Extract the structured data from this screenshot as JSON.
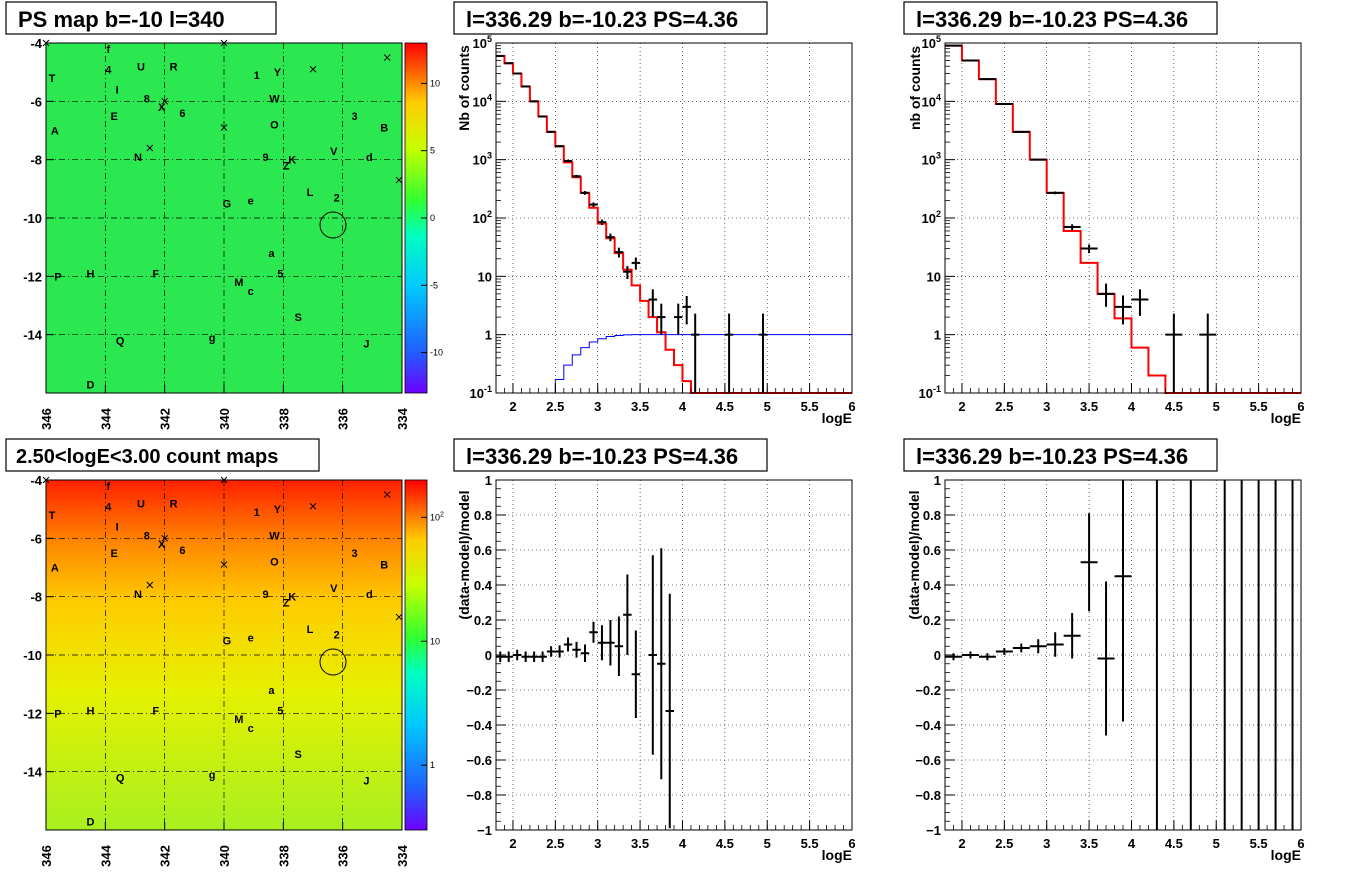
{
  "chart_data": [
    {
      "type": "heatmap",
      "title": "PS map b=-10 l=340",
      "x_ticks": [
        "346",
        "344",
        "342",
        "340",
        "338",
        "336",
        "334"
      ],
      "y_ticks": [
        "-4",
        "-6",
        "-8",
        "-10",
        "-12",
        "-14"
      ],
      "xlim": [
        346,
        334
      ],
      "ylim": [
        -16,
        -4
      ],
      "colorbar": {
        "scale": "linear",
        "min": -13,
        "max": 13,
        "ticks": [
          "10",
          "5",
          "0",
          "-5",
          "-10"
        ]
      },
      "grid": true,
      "background_value": 0,
      "source_labels": [
        {
          "label": "f",
          "l": 343.9,
          "b": -4.2
        },
        {
          "label": "4",
          "l": 343.9,
          "b": -4.9
        },
        {
          "label": "U",
          "l": 342.8,
          "b": -4.8
        },
        {
          "label": "R",
          "l": 341.7,
          "b": -4.8
        },
        {
          "label": "1",
          "l": 338.9,
          "b": -5.1
        },
        {
          "label": "Y",
          "l": 338.2,
          "b": -5.0
        },
        {
          "label": "T",
          "l": 345.8,
          "b": -5.2
        },
        {
          "label": "I",
          "l": 343.6,
          "b": -5.6
        },
        {
          "label": "8",
          "l": 342.6,
          "b": -5.9
        },
        {
          "label": "W",
          "l": 338.3,
          "b": -5.9
        },
        {
          "label": "X",
          "l": 342.1,
          "b": -6.2
        },
        {
          "label": "6",
          "l": 341.4,
          "b": -6.4
        },
        {
          "label": "E",
          "l": 343.7,
          "b": -6.5
        },
        {
          "label": "3",
          "l": 335.6,
          "b": -6.5
        },
        {
          "label": "O",
          "l": 338.3,
          "b": -6.8
        },
        {
          "label": "A",
          "l": 345.7,
          "b": -7.0
        },
        {
          "label": "B",
          "l": 334.6,
          "b": -6.9
        },
        {
          "label": "N",
          "l": 342.9,
          "b": -7.9
        },
        {
          "label": "9",
          "l": 338.6,
          "b": -7.9
        },
        {
          "label": "K",
          "l": 337.7,
          "b": -8.0
        },
        {
          "label": "Z",
          "l": 337.9,
          "b": -8.2
        },
        {
          "label": "V",
          "l": 336.3,
          "b": -7.7
        },
        {
          "label": "d",
          "l": 335.1,
          "b": -7.9
        },
        {
          "label": "L",
          "l": 337.1,
          "b": -9.1
        },
        {
          "label": "2",
          "l": 336.2,
          "b": -9.3
        },
        {
          "label": "G",
          "l": 339.9,
          "b": -9.5
        },
        {
          "label": "e",
          "l": 339.1,
          "b": -9.4
        },
        {
          "label": "a",
          "l": 338.4,
          "b": -11.2
        },
        {
          "label": "P",
          "l": 345.6,
          "b": -12.0
        },
        {
          "label": "H",
          "l": 344.5,
          "b": -11.9
        },
        {
          "label": "F",
          "l": 342.3,
          "b": -11.9
        },
        {
          "label": "5",
          "l": 338.1,
          "b": -11.9
        },
        {
          "label": "M",
          "l": 339.5,
          "b": -12.2
        },
        {
          "label": "c",
          "l": 339.1,
          "b": -12.5
        },
        {
          "label": "S",
          "l": 337.5,
          "b": -13.4
        },
        {
          "label": "Q",
          "l": 343.5,
          "b": -14.2
        },
        {
          "label": "g",
          "l": 340.4,
          "b": -14.1
        },
        {
          "label": "J",
          "l": 335.2,
          "b": -14.3
        },
        {
          "label": "D",
          "l": 344.5,
          "b": -15.7
        }
      ],
      "crosses": [
        {
          "l": 346.0,
          "b": -4.0
        },
        {
          "l": 340.0,
          "b": -4.0
        },
        {
          "l": 337.0,
          "b": -4.9
        },
        {
          "l": 334.5,
          "b": -4.5
        },
        {
          "l": 342.0,
          "b": -6.0
        },
        {
          "l": 340.0,
          "b": -6.9
        },
        {
          "l": 342.5,
          "b": -7.6
        },
        {
          "l": 334.1,
          "b": -8.7
        }
      ],
      "circle": {
        "l": 336.29,
        "b": -10.23
      }
    },
    {
      "type": "line",
      "title": "l=336.29 b=-10.23 PS=4.36",
      "xlabel": "logE",
      "ylabel": "Nb of counts",
      "xlim": [
        1.8,
        6
      ],
      "ylim": [
        0.1,
        100000
      ],
      "yscale": "log",
      "x_ticks": [
        "2",
        "2.5",
        "3",
        "3.5",
        "4",
        "4.5",
        "5",
        "5.5",
        "6"
      ],
      "y_ticks": [
        "10^-1",
        "1",
        "10",
        "10^2",
        "10^3",
        "10^4",
        "10^5"
      ],
      "grid": true,
      "series": [
        {
          "color": "#ff0000",
          "step_width": 0.1,
          "edges_start": 1.8,
          "values": [
            60000,
            45000,
            30000,
            18000,
            10000,
            5500,
            3000,
            1700,
            900,
            500,
            270,
            150,
            80,
            45,
            25,
            13,
            7,
            3.8,
            2.0,
            1.1,
            0.55,
            0.3,
            0.16,
            0.1,
            0.1,
            0.1,
            0.1,
            0.1,
            0.1,
            0.1,
            0.1,
            0.1,
            0.1,
            0.1,
            0.1,
            0.1,
            0.1,
            0.1,
            0.1,
            0.1,
            0.1,
            0.1
          ]
        },
        {
          "color": "#0000ff",
          "step_width": 0.1,
          "edges_start": 1.8,
          "values": [
            0.1,
            0.1,
            0.1,
            0.1,
            0.1,
            0.1,
            0.1,
            0.17,
            0.3,
            0.45,
            0.6,
            0.75,
            0.85,
            0.93,
            0.97,
            0.99,
            1,
            1,
            1,
            1,
            1,
            1,
            1,
            1,
            1,
            1,
            1,
            1,
            1,
            1,
            1,
            1,
            1,
            1,
            1,
            1,
            1,
            1,
            1,
            1,
            1,
            1
          ]
        }
      ],
      "points": [
        {
          "x": 1.85,
          "y": 60000,
          "ylo": 59000,
          "yhi": 61000,
          "hw": 0.05
        },
        {
          "x": 1.95,
          "y": 45000,
          "ylo": 44000,
          "yhi": 46000,
          "hw": 0.05
        },
        {
          "x": 2.05,
          "y": 30000,
          "ylo": 29000,
          "yhi": 31000,
          "hw": 0.05
        },
        {
          "x": 2.15,
          "y": 18000,
          "ylo": 17500,
          "yhi": 18500,
          "hw": 0.05
        },
        {
          "x": 2.25,
          "y": 10000,
          "ylo": 9700,
          "yhi": 10300,
          "hw": 0.05
        },
        {
          "x": 2.35,
          "y": 5500,
          "ylo": 5300,
          "yhi": 5700,
          "hw": 0.05
        },
        {
          "x": 2.45,
          "y": 3000,
          "ylo": 2900,
          "yhi": 3100,
          "hw": 0.05
        },
        {
          "x": 2.55,
          "y": 1700,
          "ylo": 1630,
          "yhi": 1770,
          "hw": 0.05
        },
        {
          "x": 2.65,
          "y": 950,
          "ylo": 900,
          "yhi": 1000,
          "hw": 0.05
        },
        {
          "x": 2.75,
          "y": 520,
          "ylo": 490,
          "yhi": 550,
          "hw": 0.05
        },
        {
          "x": 2.85,
          "y": 270,
          "ylo": 250,
          "yhi": 290,
          "hw": 0.05
        },
        {
          "x": 2.95,
          "y": 170,
          "ylo": 155,
          "yhi": 185,
          "hw": 0.05
        },
        {
          "x": 3.05,
          "y": 85,
          "ylo": 76,
          "yhi": 94,
          "hw": 0.05
        },
        {
          "x": 3.15,
          "y": 47,
          "ylo": 40,
          "yhi": 54,
          "hw": 0.05
        },
        {
          "x": 3.25,
          "y": 26,
          "ylo": 21,
          "yhi": 31,
          "hw": 0.05
        },
        {
          "x": 3.35,
          "y": 12,
          "ylo": 9,
          "yhi": 15,
          "hw": 0.05
        },
        {
          "x": 3.45,
          "y": 17,
          "ylo": 13,
          "yhi": 21,
          "hw": 0.05
        },
        {
          "x": 3.65,
          "y": 4,
          "ylo": 2,
          "yhi": 6,
          "hw": 0.05
        },
        {
          "x": 3.75,
          "y": 2,
          "ylo": 1,
          "yhi": 3.4,
          "hw": 0.05
        },
        {
          "x": 3.95,
          "y": 2,
          "ylo": 1,
          "yhi": 3.4,
          "hw": 0.05
        },
        {
          "x": 4.05,
          "y": 3,
          "ylo": 1.5,
          "yhi": 4.6,
          "hw": 0.05
        },
        {
          "x": 4.15,
          "y": 1,
          "ylo": 0.1,
          "yhi": 2.3,
          "hw": 0.05
        },
        {
          "x": 4.55,
          "y": 1,
          "ylo": 0.1,
          "yhi": 2.3,
          "hw": 0.05
        },
        {
          "x": 4.95,
          "y": 1,
          "ylo": 0.1,
          "yhi": 2.3,
          "hw": 0.05
        }
      ]
    },
    {
      "type": "line",
      "title": "l=336.29 b=-10.23 PS=4.36",
      "xlabel": "logE",
      "ylabel": "nb of counts",
      "xlim": [
        1.8,
        6
      ],
      "ylim": [
        0.1,
        100000
      ],
      "yscale": "log",
      "x_ticks": [
        "2",
        "2.5",
        "3",
        "3.5",
        "4",
        "4.5",
        "5",
        "5.5",
        "6"
      ],
      "y_ticks": [
        "10^-1",
        "1",
        "10",
        "10^2",
        "10^3",
        "10^4",
        "10^5"
      ],
      "grid": true,
      "series": [
        {
          "color": "#ff0000",
          "step_width": 0.2,
          "edges_start": 1.8,
          "values": [
            90000,
            50000,
            24000,
            9000,
            3000,
            1000,
            270,
            60,
            17,
            5,
            1.9,
            0.6,
            0.2,
            0.1,
            0.1,
            0.1,
            0.1,
            0.1,
            0.1,
            0.1,
            0.1
          ]
        }
      ],
      "points": [
        {
          "x": 1.9,
          "y": 90000,
          "ylo": 89000,
          "yhi": 91000,
          "hw": 0.1
        },
        {
          "x": 2.1,
          "y": 50000,
          "ylo": 49000,
          "yhi": 51000,
          "hw": 0.1
        },
        {
          "x": 2.3,
          "y": 24000,
          "ylo": 23500,
          "yhi": 24500,
          "hw": 0.1
        },
        {
          "x": 2.5,
          "y": 9000,
          "ylo": 8800,
          "yhi": 9200,
          "hw": 0.1
        },
        {
          "x": 2.7,
          "y": 3000,
          "ylo": 2900,
          "yhi": 3100,
          "hw": 0.1
        },
        {
          "x": 2.9,
          "y": 1000,
          "ylo": 970,
          "yhi": 1030,
          "hw": 0.1
        },
        {
          "x": 3.1,
          "y": 270,
          "ylo": 255,
          "yhi": 285,
          "hw": 0.1
        },
        {
          "x": 3.3,
          "y": 70,
          "ylo": 62,
          "yhi": 78,
          "hw": 0.1
        },
        {
          "x": 3.5,
          "y": 30,
          "ylo": 25,
          "yhi": 35,
          "hw": 0.1
        },
        {
          "x": 3.7,
          "y": 5,
          "ylo": 3,
          "yhi": 7.5,
          "hw": 0.1
        },
        {
          "x": 3.9,
          "y": 3,
          "ylo": 1.5,
          "yhi": 4.7,
          "hw": 0.1
        },
        {
          "x": 4.1,
          "y": 4,
          "ylo": 2.1,
          "yhi": 6,
          "hw": 0.1
        },
        {
          "x": 4.5,
          "y": 1,
          "ylo": 0.1,
          "yhi": 2.3,
          "hw": 0.1
        },
        {
          "x": 4.9,
          "y": 1,
          "ylo": 0.1,
          "yhi": 2.3,
          "hw": 0.1
        }
      ]
    },
    {
      "type": "heatmap",
      "title": "2.50<logE<3.00 count maps",
      "x_ticks": [
        "346",
        "344",
        "342",
        "340",
        "338",
        "336",
        "334"
      ],
      "y_ticks": [
        "-4",
        "-6",
        "-8",
        "-10",
        "-12",
        "-14"
      ],
      "xlim": [
        346,
        334
      ],
      "ylim": [
        -16,
        -4
      ],
      "colorbar": {
        "scale": "log",
        "min": 0.3,
        "max": 200,
        "ticks": [
          "10^2",
          "10",
          "1"
        ]
      },
      "grid": true,
      "gradient": {
        "top_value": 150,
        "bottom_value": 12
      }
    },
    {
      "type": "scatter",
      "title": "l=336.29 b=-10.23 PS=4.36",
      "xlabel": "logE",
      "ylabel": "(data-model)/model",
      "xlim": [
        1.8,
        6
      ],
      "ylim": [
        -1,
        1
      ],
      "x_ticks": [
        "2",
        "2.5",
        "3",
        "3.5",
        "4",
        "4.5",
        "5",
        "5.5",
        "6"
      ],
      "y_ticks": [
        "1",
        "0.8",
        "0.6",
        "0.4",
        "0.2",
        "0",
        "-0.2",
        "-0.4",
        "-0.6",
        "-0.8",
        "-1"
      ],
      "grid": true,
      "points": [
        {
          "x": 1.85,
          "y": -0.01,
          "err": 0.03,
          "hw": 0.05
        },
        {
          "x": 1.95,
          "y": -0.01,
          "err": 0.03,
          "hw": 0.05
        },
        {
          "x": 2.05,
          "y": 0.0,
          "err": 0.03,
          "hw": 0.05
        },
        {
          "x": 2.15,
          "y": -0.01,
          "err": 0.03,
          "hw": 0.05
        },
        {
          "x": 2.25,
          "y": -0.01,
          "err": 0.03,
          "hw": 0.05
        },
        {
          "x": 2.35,
          "y": -0.01,
          "err": 0.03,
          "hw": 0.05
        },
        {
          "x": 2.45,
          "y": 0.02,
          "err": 0.03,
          "hw": 0.05
        },
        {
          "x": 2.55,
          "y": 0.02,
          "err": 0.035,
          "hw": 0.05
        },
        {
          "x": 2.65,
          "y": 0.06,
          "err": 0.04,
          "hw": 0.05
        },
        {
          "x": 2.75,
          "y": 0.03,
          "err": 0.045,
          "hw": 0.05
        },
        {
          "x": 2.85,
          "y": 0.01,
          "err": 0.05,
          "hw": 0.05
        },
        {
          "x": 2.95,
          "y": 0.13,
          "err": 0.06,
          "hw": 0.05
        },
        {
          "x": 3.05,
          "y": 0.07,
          "err": 0.1,
          "hw": 0.05
        },
        {
          "x": 3.15,
          "y": 0.07,
          "err": 0.13,
          "hw": 0.05
        },
        {
          "x": 3.25,
          "y": 0.05,
          "err": 0.17,
          "hw": 0.05
        },
        {
          "x": 3.35,
          "y": 0.23,
          "err": 0.23,
          "hw": 0.05
        },
        {
          "x": 3.45,
          "y": -0.11,
          "err": 0.25,
          "hw": 0.05
        },
        {
          "x": 3.65,
          "y": 0.0,
          "err": 0.57,
          "hw": 0.05
        },
        {
          "x": 3.75,
          "y": -0.05,
          "err": 0.66,
          "hw": 0.05
        },
        {
          "x": 3.85,
          "y": -0.32,
          "err": 0.67,
          "hw": 0.05
        }
      ]
    },
    {
      "type": "scatter",
      "title": "l=336.29 b=-10.23 PS=4.36",
      "xlabel": "logE",
      "ylabel": "(data-model)/model",
      "xlim": [
        1.8,
        6
      ],
      "ylim": [
        -1,
        1
      ],
      "x_ticks": [
        "2",
        "2.5",
        "3",
        "3.5",
        "4",
        "4.5",
        "5",
        "5.5",
        "6"
      ],
      "y_ticks": [
        "1",
        "0.8",
        "0.6",
        "0.4",
        "0.2",
        "0",
        "-0.2",
        "-0.4",
        "-0.6",
        "-0.8",
        "-1"
      ],
      "grid": true,
      "points": [
        {
          "x": 1.9,
          "y": -0.01,
          "err": 0.02,
          "hw": 0.1
        },
        {
          "x": 2.1,
          "y": 0.0,
          "err": 0.02,
          "hw": 0.1
        },
        {
          "x": 2.3,
          "y": -0.01,
          "err": 0.02,
          "hw": 0.1
        },
        {
          "x": 2.5,
          "y": 0.02,
          "err": 0.02,
          "hw": 0.1
        },
        {
          "x": 2.7,
          "y": 0.04,
          "err": 0.025,
          "hw": 0.1
        },
        {
          "x": 2.9,
          "y": 0.05,
          "err": 0.04,
          "hw": 0.1
        },
        {
          "x": 3.1,
          "y": 0.06,
          "err": 0.07,
          "hw": 0.1
        },
        {
          "x": 3.3,
          "y": 0.11,
          "err": 0.13,
          "hw": 0.1
        },
        {
          "x": 3.5,
          "y": 0.53,
          "err": 0.28,
          "hw": 0.1
        },
        {
          "x": 3.7,
          "y": -0.02,
          "err": 0.44,
          "hw": 0.1
        },
        {
          "x": 3.9,
          "y": 0.45,
          "err": 0.83,
          "hw": 0.1
        },
        {
          "x": 4.3,
          "y": 0.0,
          "err": 2,
          "hw": 0
        },
        {
          "x": 4.7,
          "y": 0.0,
          "err": 2,
          "hw": 0
        },
        {
          "x": 5.1,
          "y": 0.0,
          "err": 2,
          "hw": 0
        },
        {
          "x": 5.3,
          "y": 0.0,
          "err": 2,
          "hw": 0
        },
        {
          "x": 5.5,
          "y": 0.0,
          "err": 2,
          "hw": 0
        },
        {
          "x": 5.7,
          "y": 0.0,
          "err": 2,
          "hw": 0
        },
        {
          "x": 5.9,
          "y": 0.0,
          "err": 2,
          "hw": 0
        }
      ]
    }
  ]
}
